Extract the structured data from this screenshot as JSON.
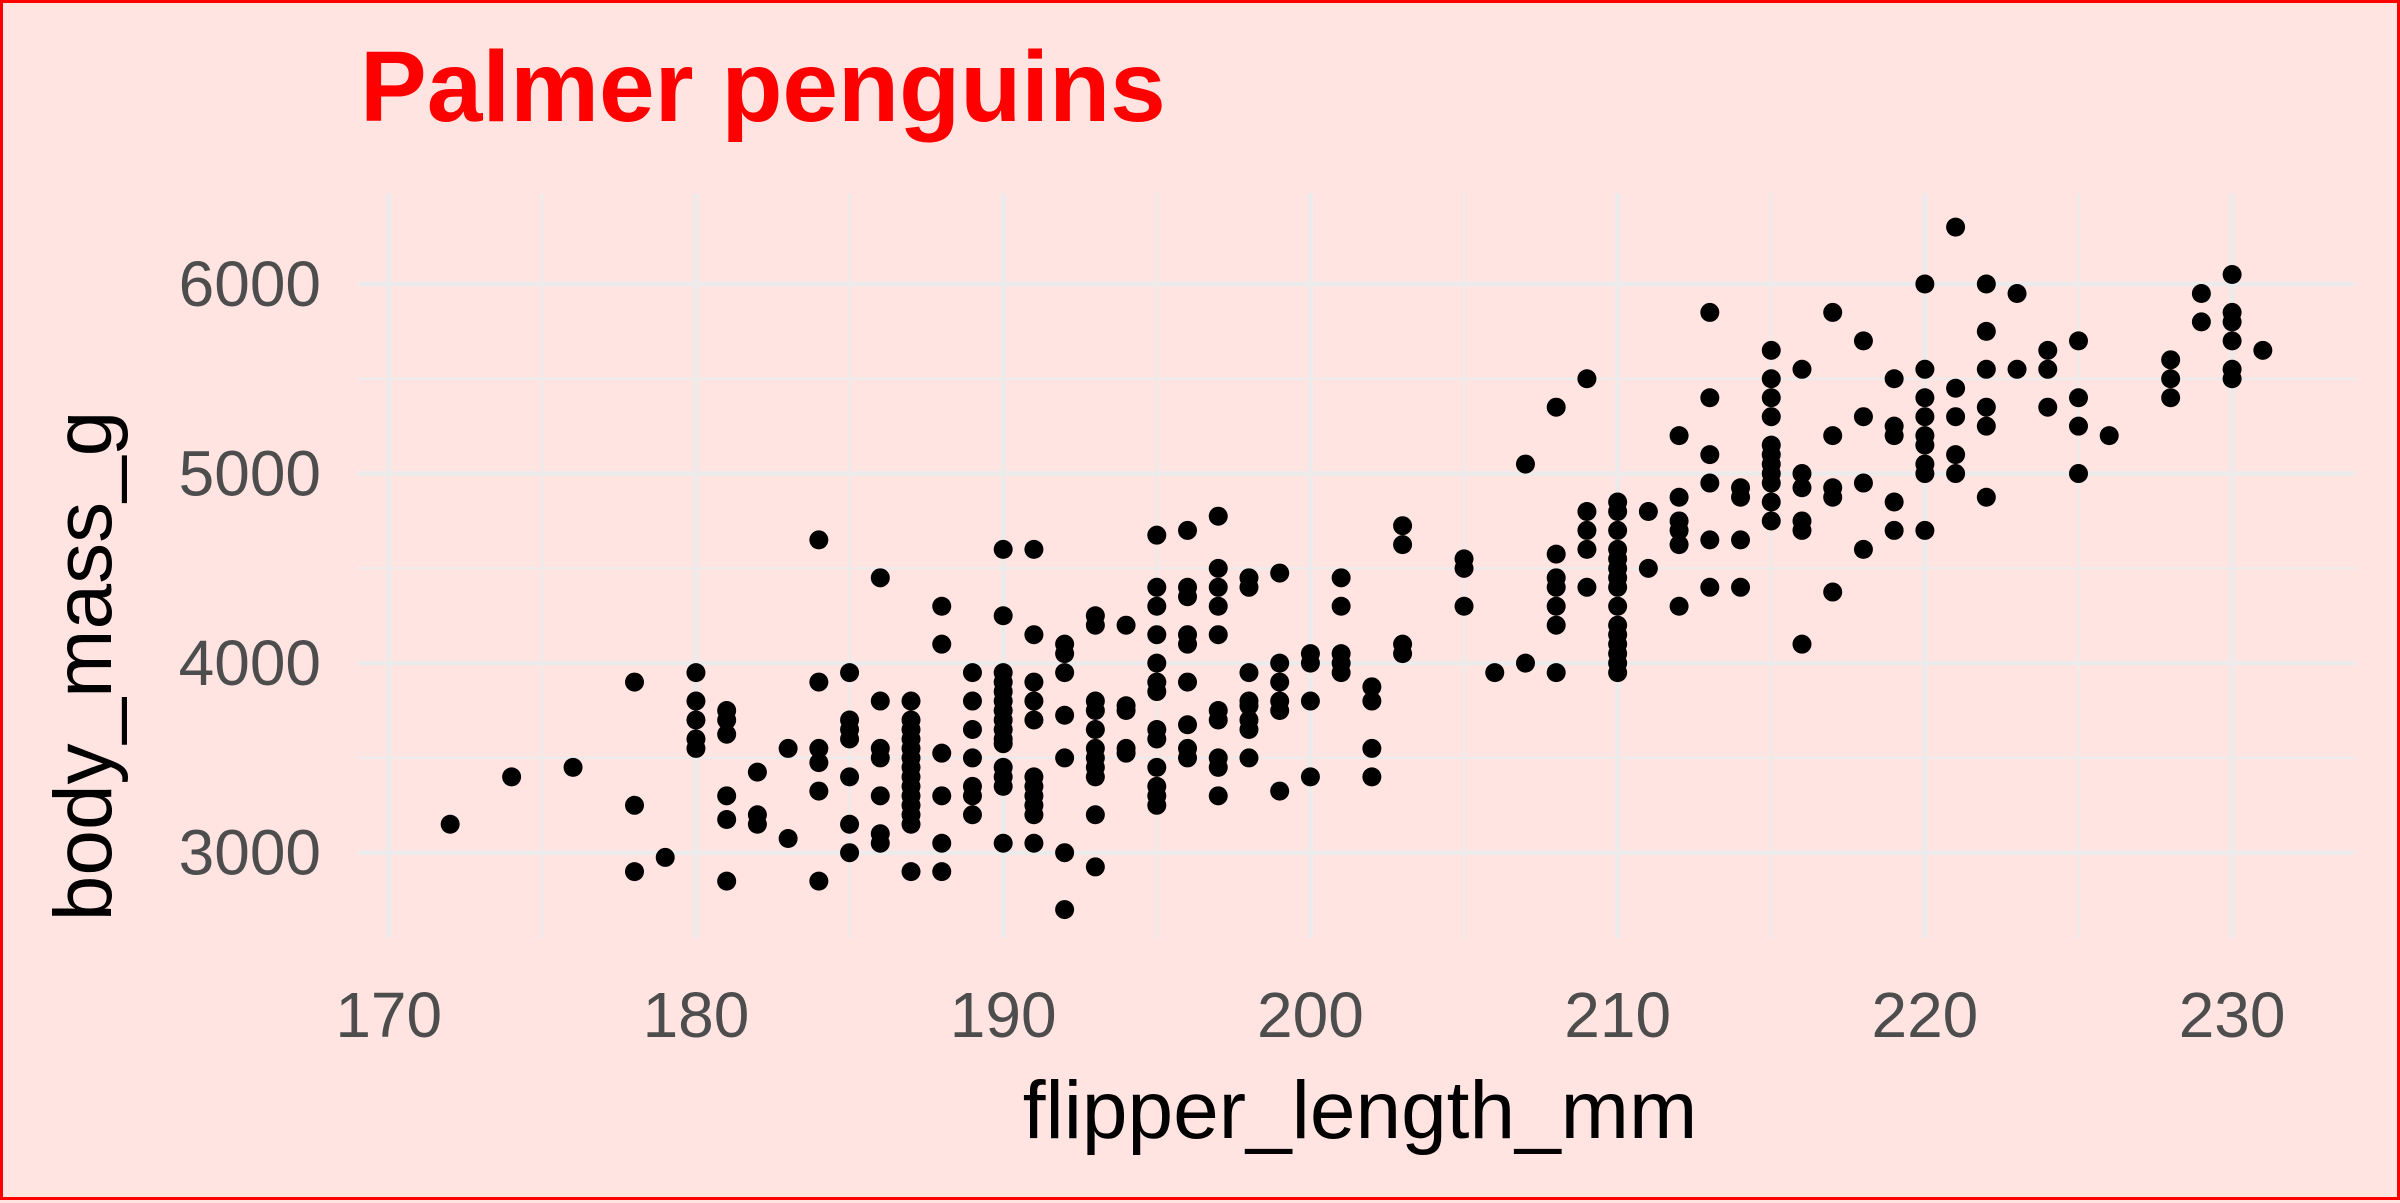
{
  "chart_data": {
    "type": "scatter",
    "title": "Palmer penguins",
    "xlabel": "flipper_length_mm",
    "ylabel": "body_mass_g",
    "xlim": [
      169,
      234
    ],
    "ylim": [
      2550,
      6480
    ],
    "x_ticks": [
      170,
      180,
      190,
      200,
      210,
      220,
      230
    ],
    "y_ticks": [
      3000,
      4000,
      5000,
      6000
    ],
    "grid": true,
    "legend": "none",
    "colors": {
      "background": "#ffe4e1",
      "border": "#ff0000",
      "title": "#ff0000",
      "points": "#000000",
      "grid": "#ebebeb"
    },
    "points": [
      [
        172,
        3150
      ],
      [
        174,
        3400
      ],
      [
        176,
        3450
      ],
      [
        178,
        3900
      ],
      [
        178,
        3250
      ],
      [
        178,
        2900
      ],
      [
        179,
        2975
      ],
      [
        180,
        3950
      ],
      [
        180,
        3800
      ],
      [
        180,
        3700
      ],
      [
        180,
        3600
      ],
      [
        180,
        3550
      ],
      [
        181,
        3750
      ],
      [
        181,
        3700
      ],
      [
        181,
        3625
      ],
      [
        181,
        3300
      ],
      [
        181,
        3175
      ],
      [
        181,
        2850
      ],
      [
        182,
        3425
      ],
      [
        182,
        3200
      ],
      [
        182,
        3150
      ],
      [
        183,
        3550
      ],
      [
        183,
        3075
      ],
      [
        184,
        4650
      ],
      [
        184,
        3900
      ],
      [
        184,
        3550
      ],
      [
        184,
        3475
      ],
      [
        184,
        3325
      ],
      [
        184,
        2850
      ],
      [
        185,
        3950
      ],
      [
        185,
        3700
      ],
      [
        185,
        3650
      ],
      [
        185,
        3600
      ],
      [
        185,
        3400
      ],
      [
        185,
        3150
      ],
      [
        185,
        3000
      ],
      [
        186,
        4450
      ],
      [
        186,
        3800
      ],
      [
        186,
        3550
      ],
      [
        186,
        3500
      ],
      [
        186,
        3300
      ],
      [
        186,
        3100
      ],
      [
        186,
        3050
      ],
      [
        187,
        3800
      ],
      [
        187,
        3700
      ],
      [
        187,
        3650
      ],
      [
        187,
        3600
      ],
      [
        187,
        3550
      ],
      [
        187,
        3500
      ],
      [
        187,
        3450
      ],
      [
        187,
        3400
      ],
      [
        187,
        3350
      ],
      [
        187,
        3300
      ],
      [
        187,
        3250
      ],
      [
        187,
        3200
      ],
      [
        187,
        3150
      ],
      [
        187,
        2900
      ],
      [
        188,
        4300
      ],
      [
        188,
        4100
      ],
      [
        188,
        3525
      ],
      [
        188,
        3300
      ],
      [
        188,
        3050
      ],
      [
        188,
        2900
      ],
      [
        189,
        3950
      ],
      [
        189,
        3800
      ],
      [
        189,
        3650
      ],
      [
        189,
        3500
      ],
      [
        189,
        3350
      ],
      [
        189,
        3300
      ],
      [
        189,
        3200
      ],
      [
        190,
        4600
      ],
      [
        190,
        4250
      ],
      [
        190,
        3950
      ],
      [
        190,
        3900
      ],
      [
        190,
        3850
      ],
      [
        190,
        3800
      ],
      [
        190,
        3750
      ],
      [
        190,
        3700
      ],
      [
        190,
        3650
      ],
      [
        190,
        3600
      ],
      [
        190,
        3575
      ],
      [
        190,
        3450
      ],
      [
        190,
        3400
      ],
      [
        190,
        3350
      ],
      [
        190,
        3050
      ],
      [
        191,
        4600
      ],
      [
        191,
        4150
      ],
      [
        191,
        3900
      ],
      [
        191,
        3800
      ],
      [
        191,
        3700
      ],
      [
        191,
        3400
      ],
      [
        191,
        3350
      ],
      [
        191,
        3300
      ],
      [
        191,
        3250
      ],
      [
        191,
        3200
      ],
      [
        191,
        3050
      ],
      [
        192,
        4100
      ],
      [
        192,
        4050
      ],
      [
        192,
        3950
      ],
      [
        192,
        3725
      ],
      [
        192,
        3500
      ],
      [
        192,
        3000
      ],
      [
        192,
        2700
      ],
      [
        193,
        4250
      ],
      [
        193,
        4200
      ],
      [
        193,
        3800
      ],
      [
        193,
        3750
      ],
      [
        193,
        3650
      ],
      [
        193,
        3550
      ],
      [
        193,
        3500
      ],
      [
        193,
        3450
      ],
      [
        193,
        3400
      ],
      [
        193,
        3200
      ],
      [
        193,
        2925
      ],
      [
        194,
        4200
      ],
      [
        194,
        3775
      ],
      [
        194,
        3750
      ],
      [
        194,
        3550
      ],
      [
        194,
        3525
      ],
      [
        195,
        4675
      ],
      [
        195,
        4400
      ],
      [
        195,
        4300
      ],
      [
        195,
        4150
      ],
      [
        195,
        4000
      ],
      [
        195,
        3900
      ],
      [
        195,
        3850
      ],
      [
        195,
        3650
      ],
      [
        195,
        3600
      ],
      [
        195,
        3450
      ],
      [
        195,
        3350
      ],
      [
        195,
        3300
      ],
      [
        195,
        3250
      ],
      [
        196,
        4700
      ],
      [
        196,
        4400
      ],
      [
        196,
        4350
      ],
      [
        196,
        4150
      ],
      [
        196,
        4100
      ],
      [
        196,
        3900
      ],
      [
        196,
        3675
      ],
      [
        196,
        3550
      ],
      [
        196,
        3500
      ],
      [
        197,
        4775
      ],
      [
        197,
        4500
      ],
      [
        197,
        4400
      ],
      [
        197,
        4300
      ],
      [
        197,
        4150
      ],
      [
        197,
        3750
      ],
      [
        197,
        3700
      ],
      [
        197,
        3500
      ],
      [
        197,
        3450
      ],
      [
        197,
        3300
      ],
      [
        198,
        4450
      ],
      [
        198,
        4400
      ],
      [
        198,
        3950
      ],
      [
        198,
        3800
      ],
      [
        198,
        3775
      ],
      [
        198,
        3700
      ],
      [
        198,
        3650
      ],
      [
        198,
        3500
      ],
      [
        199,
        4475
      ],
      [
        199,
        4000
      ],
      [
        199,
        3900
      ],
      [
        199,
        3800
      ],
      [
        199,
        3750
      ],
      [
        199,
        3325
      ],
      [
        200,
        4050
      ],
      [
        200,
        4000
      ],
      [
        200,
        3800
      ],
      [
        200,
        3400
      ],
      [
        201,
        4450
      ],
      [
        201,
        4300
      ],
      [
        201,
        4050
      ],
      [
        201,
        4000
      ],
      [
        201,
        3950
      ],
      [
        202,
        3875
      ],
      [
        202,
        3800
      ],
      [
        202,
        3550
      ],
      [
        202,
        3400
      ],
      [
        203,
        4725
      ],
      [
        203,
        4625
      ],
      [
        203,
        4100
      ],
      [
        203,
        4050
      ],
      [
        205,
        4550
      ],
      [
        205,
        4500
      ],
      [
        205,
        4300
      ],
      [
        206,
        3950
      ],
      [
        207,
        5050
      ],
      [
        207,
        4000
      ],
      [
        208,
        5350
      ],
      [
        208,
        4575
      ],
      [
        208,
        4450
      ],
      [
        208,
        4400
      ],
      [
        208,
        4300
      ],
      [
        208,
        4200
      ],
      [
        208,
        3950
      ],
      [
        209,
        5500
      ],
      [
        209,
        4800
      ],
      [
        209,
        4700
      ],
      [
        209,
        4600
      ],
      [
        209,
        4400
      ],
      [
        210,
        4850
      ],
      [
        210,
        4800
      ],
      [
        210,
        4700
      ],
      [
        210,
        4600
      ],
      [
        210,
        4550
      ],
      [
        210,
        4500
      ],
      [
        210,
        4450
      ],
      [
        210,
        4400
      ],
      [
        210,
        4300
      ],
      [
        210,
        4200
      ],
      [
        210,
        4150
      ],
      [
        210,
        4100
      ],
      [
        210,
        4050
      ],
      [
        210,
        4000
      ],
      [
        210,
        3950
      ],
      [
        211,
        4800
      ],
      [
        211,
        4500
      ],
      [
        212,
        5200
      ],
      [
        212,
        4875
      ],
      [
        212,
        4750
      ],
      [
        212,
        4700
      ],
      [
        212,
        4625
      ],
      [
        212,
        4300
      ],
      [
        213,
        5850
      ],
      [
        213,
        5400
      ],
      [
        213,
        5100
      ],
      [
        213,
        4950
      ],
      [
        213,
        4650
      ],
      [
        213,
        4400
      ],
      [
        214,
        4925
      ],
      [
        214,
        4875
      ],
      [
        214,
        4650
      ],
      [
        214,
        4400
      ],
      [
        215,
        5650
      ],
      [
        215,
        5500
      ],
      [
        215,
        5400
      ],
      [
        215,
        5300
      ],
      [
        215,
        5150
      ],
      [
        215,
        5100
      ],
      [
        215,
        5050
      ],
      [
        215,
        5000
      ],
      [
        215,
        4950
      ],
      [
        215,
        4850
      ],
      [
        215,
        4750
      ],
      [
        216,
        5550
      ],
      [
        216,
        5000
      ],
      [
        216,
        4925
      ],
      [
        216,
        4750
      ],
      [
        216,
        4700
      ],
      [
        216,
        4100
      ],
      [
        217,
        5850
      ],
      [
        217,
        5200
      ],
      [
        217,
        4925
      ],
      [
        217,
        4875
      ],
      [
        217,
        4375
      ],
      [
        218,
        5700
      ],
      [
        218,
        5300
      ],
      [
        218,
        4950
      ],
      [
        218,
        4600
      ],
      [
        219,
        5500
      ],
      [
        219,
        5250
      ],
      [
        219,
        5200
      ],
      [
        219,
        4850
      ],
      [
        219,
        4700
      ],
      [
        220,
        6000
      ],
      [
        220,
        5550
      ],
      [
        220,
        5400
      ],
      [
        220,
        5300
      ],
      [
        220,
        5200
      ],
      [
        220,
        5150
      ],
      [
        220,
        5050
      ],
      [
        220,
        5000
      ],
      [
        220,
        4700
      ],
      [
        221,
        6300
      ],
      [
        221,
        5450
      ],
      [
        221,
        5300
      ],
      [
        221,
        5100
      ],
      [
        221,
        5000
      ],
      [
        222,
        6000
      ],
      [
        222,
        5750
      ],
      [
        222,
        5550
      ],
      [
        222,
        5350
      ],
      [
        222,
        5250
      ],
      [
        222,
        4875
      ],
      [
        223,
        5950
      ],
      [
        223,
        5550
      ],
      [
        224,
        5650
      ],
      [
        224,
        5550
      ],
      [
        224,
        5350
      ],
      [
        225,
        5700
      ],
      [
        225,
        5400
      ],
      [
        225,
        5250
      ],
      [
        225,
        5000
      ],
      [
        226,
        5200
      ],
      [
        228,
        5600
      ],
      [
        228,
        5500
      ],
      [
        228,
        5400
      ],
      [
        229,
        5950
      ],
      [
        229,
        5800
      ],
      [
        230,
        6050
      ],
      [
        230,
        5850
      ],
      [
        230,
        5800
      ],
      [
        230,
        5700
      ],
      [
        230,
        5550
      ],
      [
        230,
        5500
      ],
      [
        231,
        5650
      ]
    ]
  }
}
